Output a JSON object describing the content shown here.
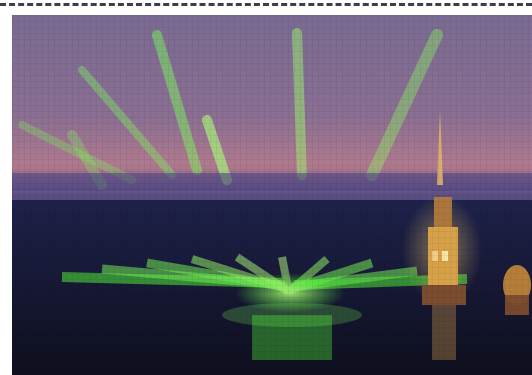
{
  "image": {
    "subject": "",
    "palette": {
      "sky_top": "#6f5b84",
      "sky_mid": "#8a6f92",
      "horizon_glow": "#b07a8e",
      "dusk_blue": "#3d3f78",
      "water_dark": "#15172e",
      "laser_green": "#7dff5a",
      "spire_gold": "#e2b04a",
      "frame_dash": "#3b3f49"
    }
  }
}
